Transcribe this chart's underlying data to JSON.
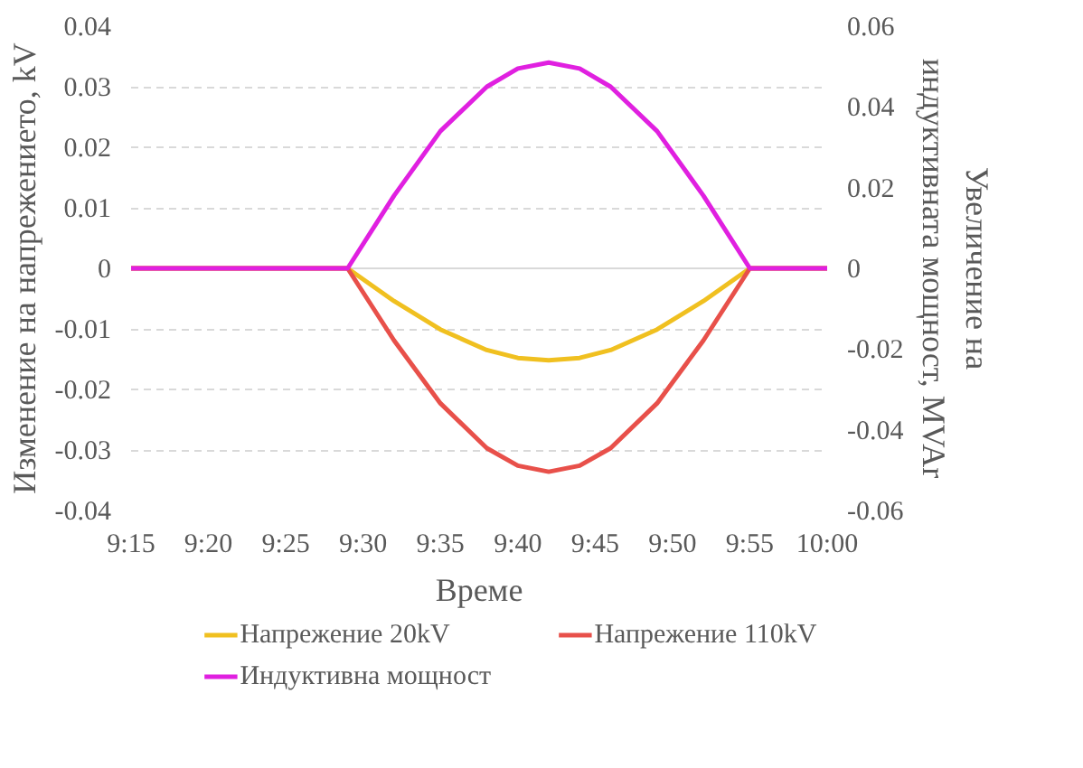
{
  "chart_data": {
    "type": "line",
    "xlabel": "Време",
    "ylabel": "Изменение на напрежението, kV",
    "y2label": "Увеличение на индуктивната мощност, MVAr",
    "x": [
      9.25,
      9.4833,
      9.5333,
      9.5833,
      9.6333,
      9.6667,
      9.7,
      9.7333,
      9.7667,
      9.8167,
      9.8667,
      9.9167,
      10.0
    ],
    "series": [
      {
        "name": "Напрежение 20kV",
        "color": "#f0c020",
        "values": [
          0,
          0,
          -0.0054,
          -0.0101,
          -0.0135,
          -0.0148,
          -0.0152,
          -0.0148,
          -0.0135,
          -0.0101,
          -0.0054,
          0,
          0
        ]
      },
      {
        "name": "Напрежение 110kV",
        "color": "#e8504a",
        "values": [
          0,
          0,
          -0.0119,
          -0.0223,
          -0.0297,
          -0.0326,
          -0.0336,
          -0.0326,
          -0.0297,
          -0.0223,
          -0.0119,
          0,
          0
        ]
      },
      {
        "name": "Индуктивна мощност",
        "color": "#e020e0",
        "axis": "y2",
        "values": [
          0,
          0,
          0.018,
          0.034,
          0.045,
          0.0495,
          0.051,
          0.0495,
          0.045,
          0.034,
          0.018,
          0,
          0
        ]
      }
    ],
    "xlim": [
      9.25,
      10.0
    ],
    "xticks": [
      {
        "value": 9.25,
        "label": "9:15"
      },
      {
        "value": 9.3333,
        "label": "9:20"
      },
      {
        "value": 9.4167,
        "label": "9:25"
      },
      {
        "value": 9.5,
        "label": "9:30"
      },
      {
        "value": 9.5833,
        "label": "9:35"
      },
      {
        "value": 9.6667,
        "label": "9:40"
      },
      {
        "value": 9.75,
        "label": "9:45"
      },
      {
        "value": 9.8333,
        "label": "9:50"
      },
      {
        "value": 9.9167,
        "label": "9:55"
      },
      {
        "value": 10.0,
        "label": "10:00"
      }
    ],
    "ylim": [
      -0.04,
      0.04
    ],
    "yticks": [
      -0.04,
      -0.03,
      -0.02,
      -0.01,
      0,
      0.01,
      0.02,
      0.03,
      0.04
    ],
    "y2lim": [
      -0.06,
      0.06
    ],
    "y2ticks": [
      -0.06,
      -0.04,
      -0.02,
      0,
      0.02,
      0.04,
      0.06
    ],
    "grid": "y",
    "legend": "bottom",
    "marker": "none",
    "line_style": "solid"
  }
}
